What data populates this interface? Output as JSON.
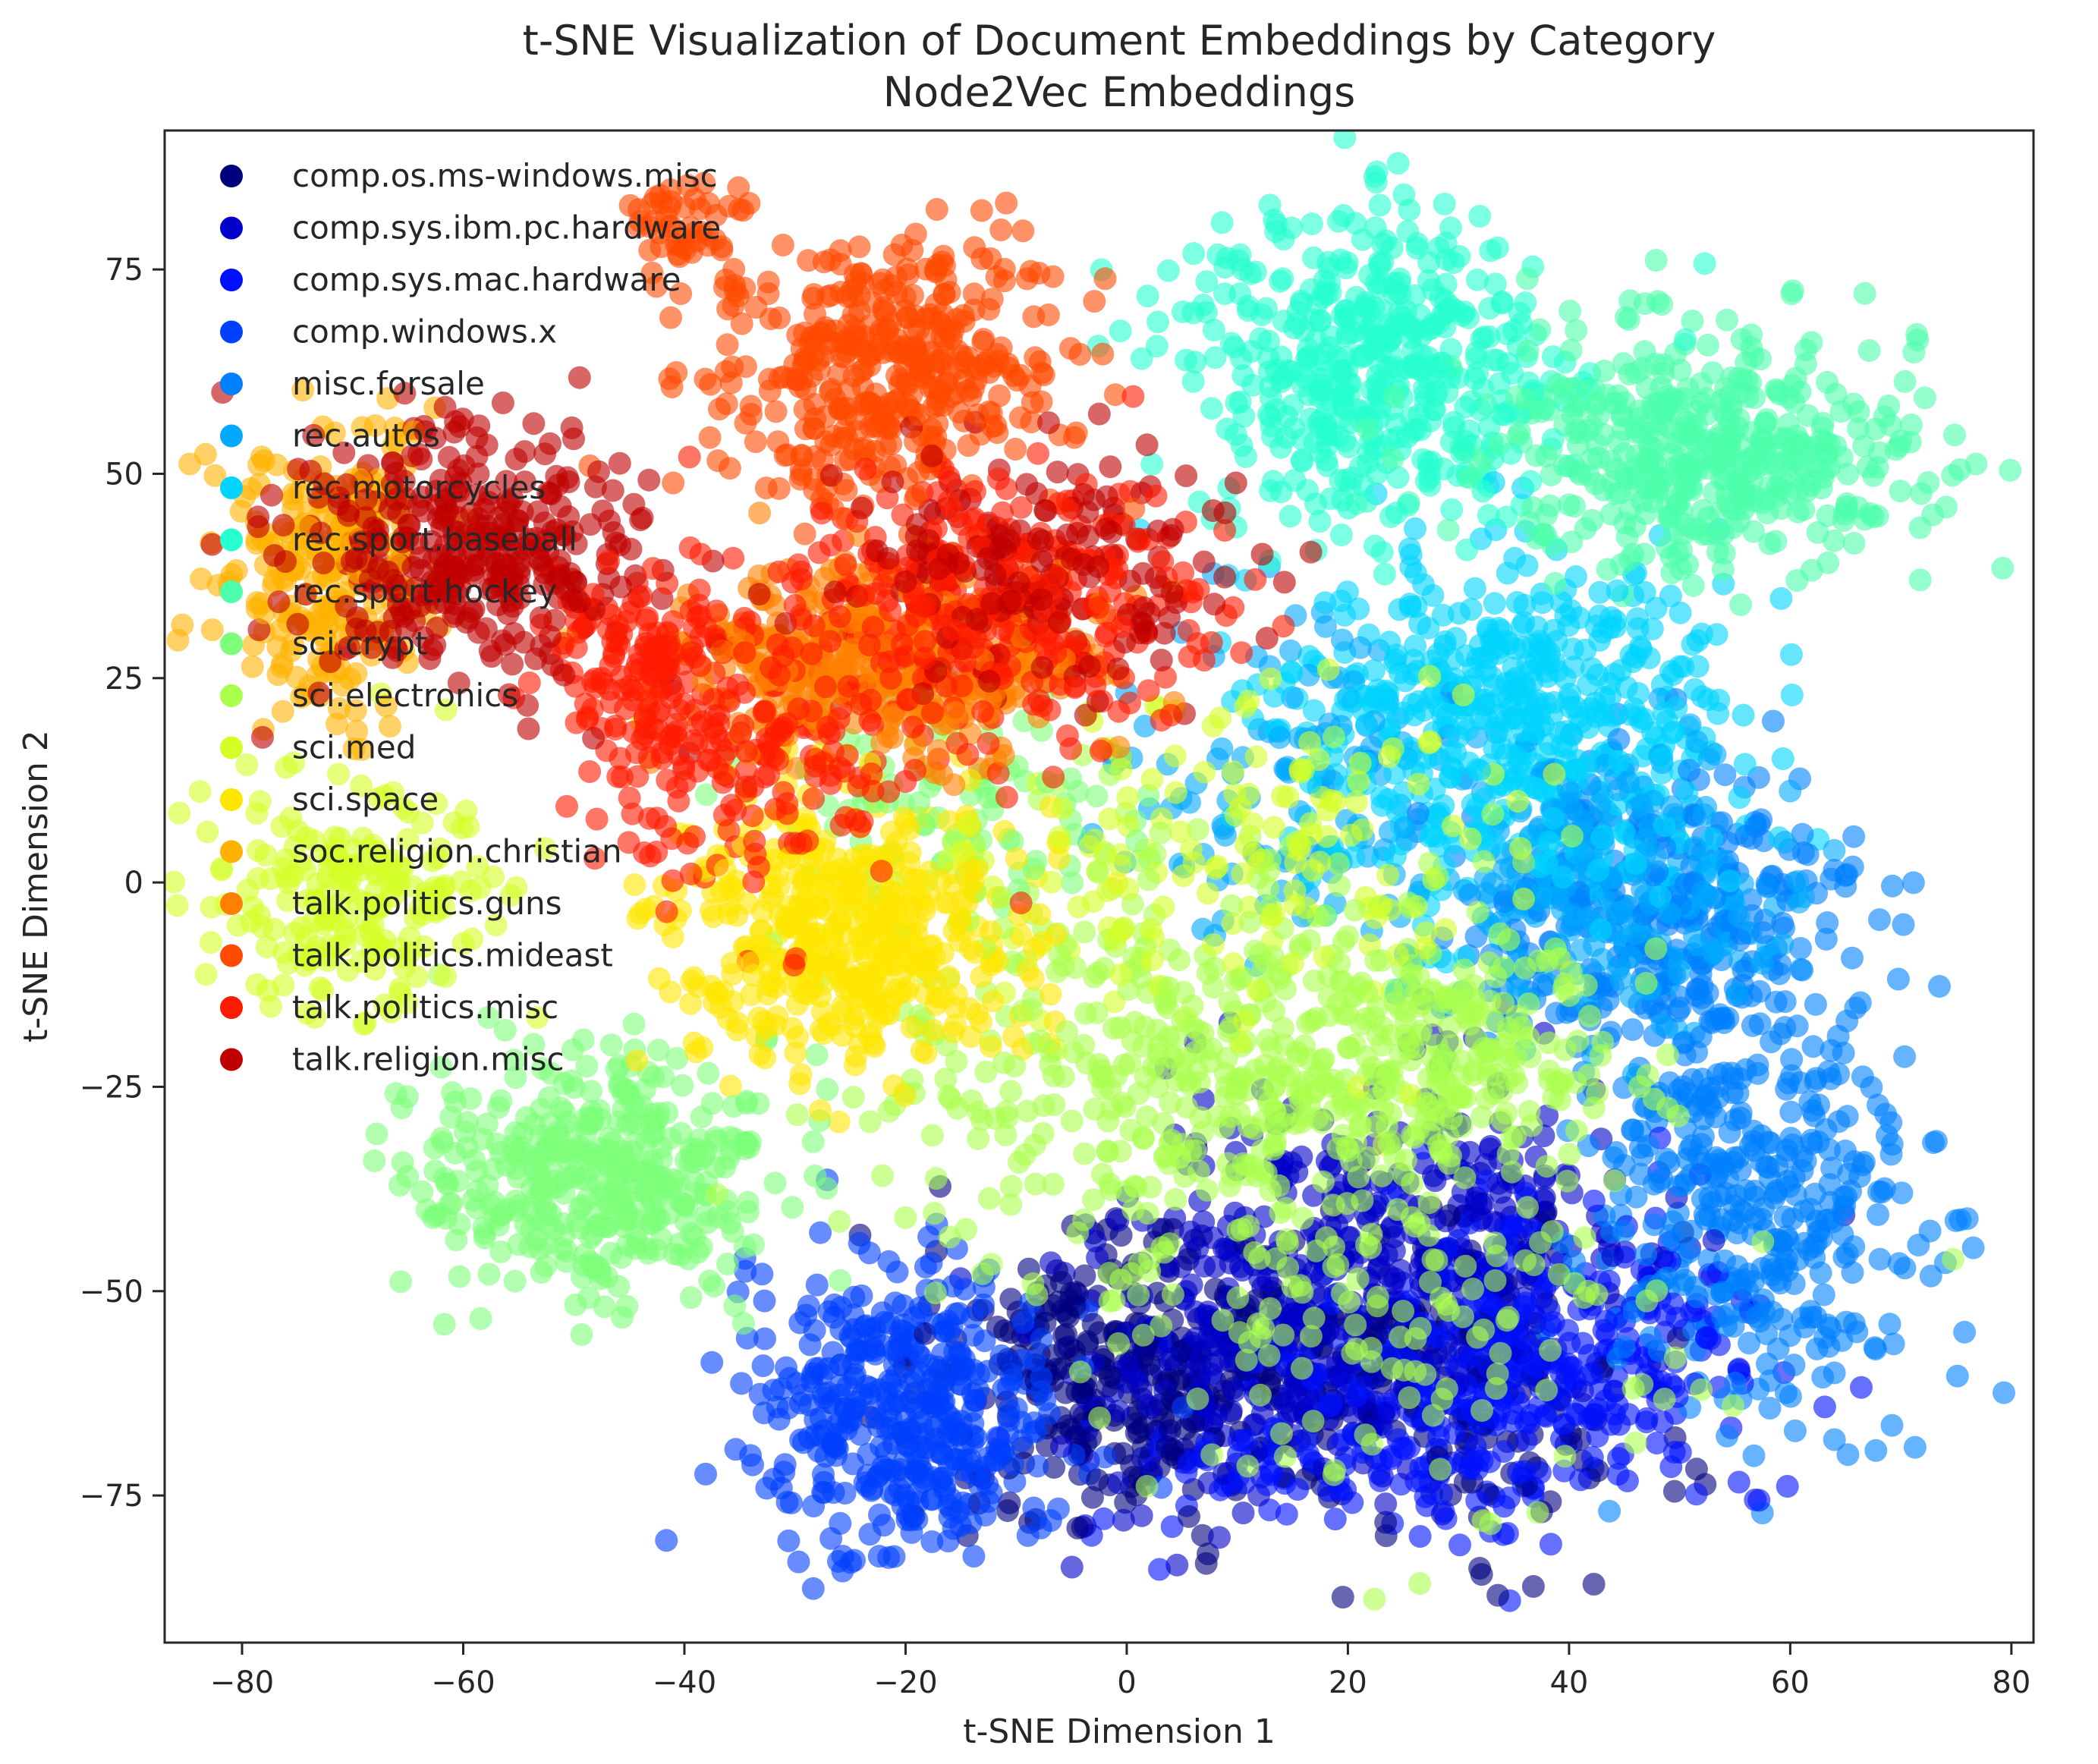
{
  "chart_data": {
    "type": "scatter",
    "title": "t-SNE Visualization of Document Embeddings by Category",
    "subtitle": "Node2Vec Embeddings",
    "xlabel": "t-SNE Dimension 1",
    "ylabel": "t-SNE Dimension 2",
    "xlim": [
      -87,
      82
    ],
    "ylim": [
      -93,
      92
    ],
    "xticks": [
      -80,
      -60,
      -40,
      -20,
      0,
      20,
      40,
      60,
      80
    ],
    "xtick_labels": [
      "−80",
      "−60",
      "−40",
      "−20",
      "0",
      "20",
      "40",
      "60",
      "80"
    ],
    "yticks": [
      -75,
      -50,
      -25,
      0,
      25,
      50,
      75
    ],
    "ytick_labels": [
      "−75",
      "−50",
      "−25",
      "0",
      "25",
      "50",
      "75"
    ],
    "grid": false,
    "legend_position": "upper-left",
    "point_alpha": 0.6,
    "series": [
      {
        "name": "comp.os.ms-windows.misc",
        "color": "#00007f",
        "clusters": [
          {
            "cx": -2,
            "cy": -60,
            "sx": 8,
            "sy": 9,
            "n": 260
          },
          {
            "cx": 27,
            "cy": -62,
            "sx": 10,
            "sy": 10,
            "n": 200
          }
        ]
      },
      {
        "name": "comp.sys.ibm.pc.hardware",
        "color": "#0000c8",
        "clusters": [
          {
            "cx": 24,
            "cy": -47,
            "sx": 12,
            "sy": 11,
            "n": 460
          },
          {
            "cx": 8,
            "cy": -62,
            "sx": 8,
            "sy": 9,
            "n": 160
          }
        ]
      },
      {
        "name": "comp.sys.mac.hardware",
        "color": "#0010ff",
        "clusters": [
          {
            "cx": 38,
            "cy": -58,
            "sx": 10,
            "sy": 9,
            "n": 300
          },
          {
            "cx": 22,
            "cy": -68,
            "sx": 12,
            "sy": 6,
            "n": 160
          }
        ]
      },
      {
        "name": "comp.windows.x",
        "color": "#0040ff",
        "clusters": [
          {
            "cx": -20,
            "cy": -65,
            "sx": 7,
            "sy": 9,
            "n": 420
          }
        ]
      },
      {
        "name": "misc.forsale",
        "color": "#0080ff",
        "clusters": [
          {
            "cx": 57,
            "cy": -40,
            "sx": 7,
            "sy": 13,
            "n": 380
          },
          {
            "cx": 48,
            "cy": -5,
            "sx": 9,
            "sy": 10,
            "n": 300
          }
        ]
      },
      {
        "name": "rec.autos",
        "color": "#00a8ff",
        "clusters": [
          {
            "cx": 44,
            "cy": 0,
            "sx": 9,
            "sy": 8,
            "n": 280
          },
          {
            "cx": 14,
            "cy": 14,
            "sx": 8,
            "sy": 10,
            "n": 120
          }
        ]
      },
      {
        "name": "rec.motorcycles",
        "color": "#00d4ff",
        "clusters": [
          {
            "cx": 35,
            "cy": 20,
            "sx": 10,
            "sy": 11,
            "n": 520
          }
        ]
      },
      {
        "name": "rec.sport.baseball",
        "color": "#26ffd0",
        "clusters": [
          {
            "cx": 22,
            "cy": 63,
            "sx": 8,
            "sy": 10,
            "n": 460
          }
        ]
      },
      {
        "name": "rec.sport.hockey",
        "color": "#4dffaa",
        "clusters": [
          {
            "cx": 52,
            "cy": 53,
            "sx": 10,
            "sy": 7,
            "n": 460
          }
        ]
      },
      {
        "name": "sci.crypt",
        "color": "#7dff7a",
        "clusters": [
          {
            "cx": -48,
            "cy": -36,
            "sx": 8,
            "sy": 7,
            "n": 400
          },
          {
            "cx": -15,
            "cy": 10,
            "sx": 9,
            "sy": 6,
            "n": 80
          }
        ]
      },
      {
        "name": "sci.electronics",
        "color": "#aaff4d",
        "clusters": [
          {
            "cx": 5,
            "cy": -22,
            "sx": 14,
            "sy": 14,
            "n": 420
          },
          {
            "cx": 28,
            "cy": -22,
            "sx": 8,
            "sy": 8,
            "n": 220
          },
          {
            "cx": 25,
            "cy": -55,
            "sx": 13,
            "sy": 11,
            "n": 130
          }
        ]
      },
      {
        "name": "sci.med",
        "color": "#d4ff26",
        "clusters": [
          {
            "cx": -70,
            "cy": -2,
            "sx": 7,
            "sy": 7,
            "n": 200
          },
          {
            "cx": 10,
            "cy": 5,
            "sx": 12,
            "sy": 12,
            "n": 160
          }
        ]
      },
      {
        "name": "sci.space",
        "color": "#ffe600",
        "clusters": [
          {
            "cx": -25,
            "cy": -6,
            "sx": 8,
            "sy": 8,
            "n": 460
          }
        ]
      },
      {
        "name": "soc.religion.christian",
        "color": "#ffb200",
        "clusters": [
          {
            "cx": -72,
            "cy": 38,
            "sx": 5,
            "sy": 9,
            "n": 260
          }
        ]
      },
      {
        "name": "talk.politics.guns",
        "color": "#ff8000",
        "clusters": [
          {
            "cx": -22,
            "cy": 27,
            "sx": 9,
            "sy": 6,
            "n": 400
          }
        ]
      },
      {
        "name": "talk.politics.mideast",
        "color": "#ff4a00",
        "clusters": [
          {
            "cx": -22,
            "cy": 63,
            "sx": 8,
            "sy": 8,
            "n": 420
          },
          {
            "cx": -40,
            "cy": 80,
            "sx": 3,
            "sy": 3,
            "n": 50
          }
        ]
      },
      {
        "name": "talk.politics.misc",
        "color": "#ff1a00",
        "clusters": [
          {
            "cx": -12,
            "cy": 33,
            "sx": 9,
            "sy": 8,
            "n": 320
          },
          {
            "cx": -35,
            "cy": 18,
            "sx": 8,
            "sy": 9,
            "n": 220
          },
          {
            "cx": -44,
            "cy": 27,
            "sx": 4,
            "sy": 5,
            "n": 100
          }
        ]
      },
      {
        "name": "talk.religion.misc",
        "color": "#bf0000",
        "clusters": [
          {
            "cx": -60,
            "cy": 40,
            "sx": 8,
            "sy": 8,
            "n": 360
          },
          {
            "cx": -8,
            "cy": 38,
            "sx": 9,
            "sy": 7,
            "n": 180
          }
        ]
      }
    ]
  }
}
